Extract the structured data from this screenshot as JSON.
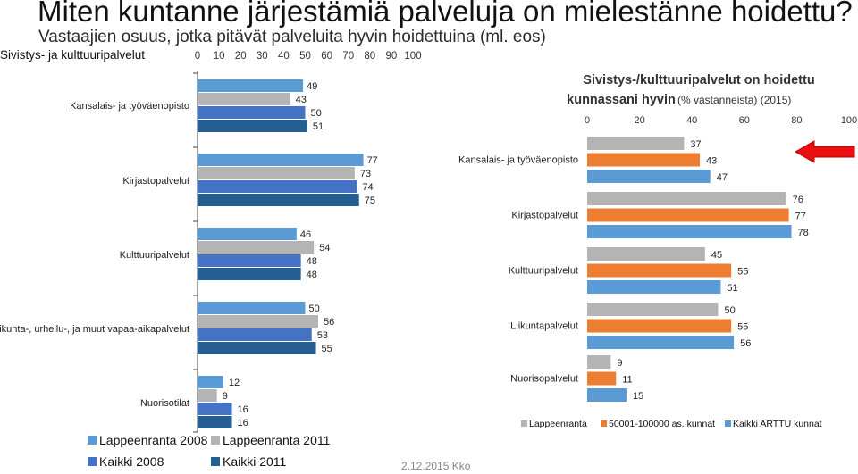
{
  "title": "Miten kuntanne järjestämiä palveluja on mielestänne hoidettu?",
  "subtitle": "Vastaajien osuus, jotka pitävät palveluita hyvin hoidettuina (ml. eos)",
  "footer": "2.12.2015 Kko",
  "chart_data": [
    {
      "type": "bar",
      "orientation": "horizontal",
      "title": "Sivistys- ja kulttuuripalvelut",
      "xlim": [
        0,
        100
      ],
      "ticks": [
        0,
        10,
        20,
        30,
        40,
        50,
        60,
        70,
        80,
        90,
        100
      ],
      "categories": [
        "Kansalais- ja työväenopisto",
        "Kirjastopalvelut",
        "Kulttuuripalvelut",
        "Liikunta-, urheilu-, ja muut vapaa-aikapalvelut",
        "Nuorisotilat"
      ],
      "series": [
        {
          "name": "Lappeenranta 2008",
          "color": "#5b9bd5",
          "values": [
            49,
            77,
            46,
            50,
            12
          ]
        },
        {
          "name": "Lappeenranta 2011",
          "color": "#b4b4b4",
          "values": [
            43,
            73,
            54,
            56,
            9
          ]
        },
        {
          "name": "Kaikki 2008",
          "color": "#4472c4",
          "values": [
            50,
            74,
            48,
            53,
            16
          ]
        },
        {
          "name": "Kaikki 2011",
          "color": "#255e91",
          "values": [
            51,
            75,
            48,
            55,
            16
          ]
        }
      ]
    },
    {
      "type": "bar",
      "orientation": "horizontal",
      "title_line1": "Sivistys-/kulttuuripalvelut on hoidettu",
      "title_line2": "kunnassani hyvin",
      "title_suffix": "(% vastanneista) (2015)",
      "xlim": [
        0,
        100
      ],
      "ticks": [
        0,
        20,
        40,
        60,
        80,
        100
      ],
      "categories": [
        "Kansalais- ja työväenopisto",
        "Kirjastopalvelut",
        "Kulttuuripalvelut",
        "Liikuntapalvelut",
        "Nuorisopalvelut"
      ],
      "series": [
        {
          "name": "Lappeenranta",
          "color": "#b4b4b4",
          "values": [
            37,
            76,
            45,
            50,
            9
          ]
        },
        {
          "name": "50001-100000 as. kunnat",
          "color": "#ed7d31",
          "values": [
            43,
            77,
            55,
            55,
            11
          ]
        },
        {
          "name": "Kaikki ARTTU kunnat",
          "color": "#5b9bd5",
          "values": [
            47,
            78,
            51,
            56,
            15
          ]
        }
      ]
    }
  ]
}
